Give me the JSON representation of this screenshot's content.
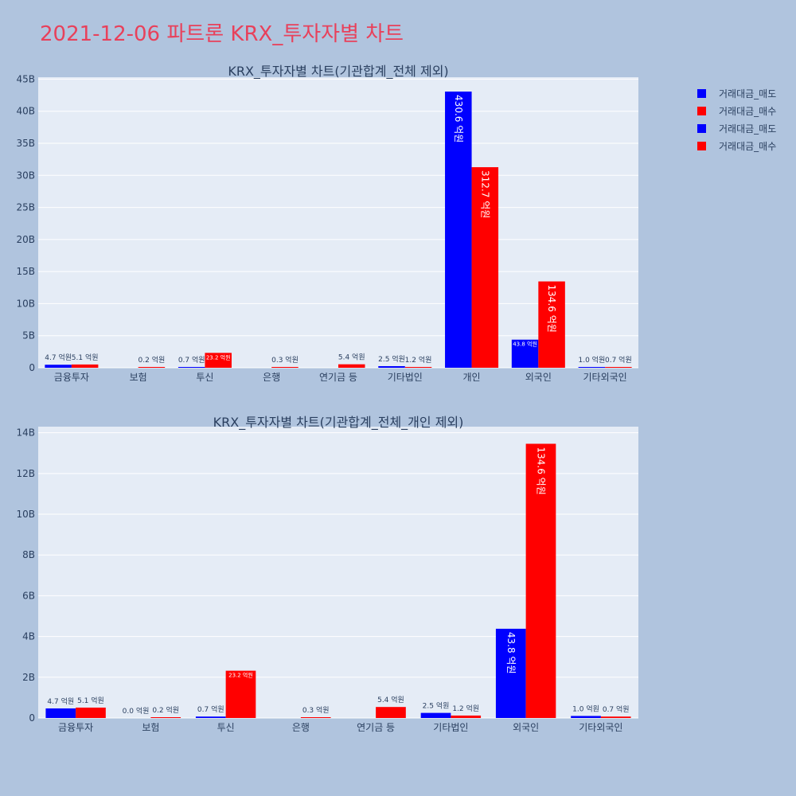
{
  "page": {
    "title": "2021-12-06 파트론 KRX_투자자별 차트"
  },
  "colors": {
    "sell": "#0000ff",
    "buy": "#ff0000",
    "background": "#b0c4de",
    "plot_bg": "#e5ecf6",
    "text": "#2a3f5f"
  },
  "legend": {
    "items": [
      {
        "label": "거래대금_매도",
        "color": "#0000ff"
      },
      {
        "label": "거래대금_매수",
        "color": "#ff0000"
      },
      {
        "label": "거래대금_매도",
        "color": "#0000ff"
      },
      {
        "label": "거래대금_매수",
        "color": "#ff0000"
      }
    ]
  },
  "chart_data": [
    {
      "type": "bar",
      "title": "KRX_투자자별 차트(기관합계_전체 제외)",
      "categories": [
        "금융투자",
        "보험",
        "투신",
        "은행",
        "연기금 등",
        "기타법인",
        "개인",
        "외국인",
        "기타외국인"
      ],
      "series": [
        {
          "name": "거래대금_매도",
          "color": "#0000ff",
          "values": [
            0.47,
            0.0,
            0.07,
            0.0,
            0.0,
            0.25,
            43.06,
            4.38,
            0.1
          ],
          "labels": [
            "4.7 억원",
            "",
            "0.7 억원",
            "",
            "",
            "2.5 억원",
            "430.6 억원",
            "43.8 억원",
            "1.0 억원"
          ]
        },
        {
          "name": "거래대금_매수",
          "color": "#ff0000",
          "values": [
            0.51,
            0.02,
            2.32,
            0.03,
            0.54,
            0.12,
            31.27,
            13.46,
            0.07
          ],
          "labels": [
            "5.1 억원",
            "0.2 억원",
            "23.2 억원",
            "0.3 억원",
            "5.4 억원",
            "1.2 억원",
            "312.7 억원",
            "134.6 억원",
            "0.7 억원"
          ]
        }
      ],
      "y_ticks": [
        0,
        5,
        10,
        15,
        20,
        25,
        30,
        35,
        40,
        45
      ],
      "y_tick_labels": [
        "0",
        "5B",
        "10B",
        "15B",
        "20B",
        "25B",
        "30B",
        "35B",
        "40B",
        "45B"
      ],
      "ylim": [
        0,
        45.3
      ],
      "grid": true,
      "legend_position": "right"
    },
    {
      "type": "bar",
      "title": "KRX_투자자별 차트(기관합계_전체_개인 제외)",
      "categories": [
        "금융투자",
        "보험",
        "투신",
        "은행",
        "연기금 등",
        "기타법인",
        "외국인",
        "기타외국인"
      ],
      "series": [
        {
          "name": "거래대금_매도",
          "color": "#0000ff",
          "values": [
            0.47,
            0.0,
            0.07,
            0.0,
            0.0,
            0.25,
            4.38,
            0.1
          ],
          "labels": [
            "4.7 억원",
            "0.0 억원",
            "0.7 억원",
            "",
            "",
            "2.5 억원",
            "43.8 억원",
            "1.0 억원"
          ]
        },
        {
          "name": "거래대금_매수",
          "color": "#ff0000",
          "values": [
            0.51,
            0.02,
            2.32,
            0.03,
            0.54,
            0.12,
            13.46,
            0.07
          ],
          "labels": [
            "5.1 억원",
            "0.2 억원",
            "23.2 억원",
            "0.3 억원",
            "5.4 억원",
            "1.2 억원",
            "134.6 억원",
            "0.7 억원"
          ]
        }
      ],
      "y_ticks": [
        0,
        2,
        4,
        6,
        8,
        10,
        12,
        14
      ],
      "y_tick_labels": [
        "0",
        "2B",
        "4B",
        "6B",
        "8B",
        "10B",
        "12B",
        "14B"
      ],
      "ylim": [
        0,
        14.3
      ],
      "grid": true,
      "legend_position": "right"
    }
  ]
}
